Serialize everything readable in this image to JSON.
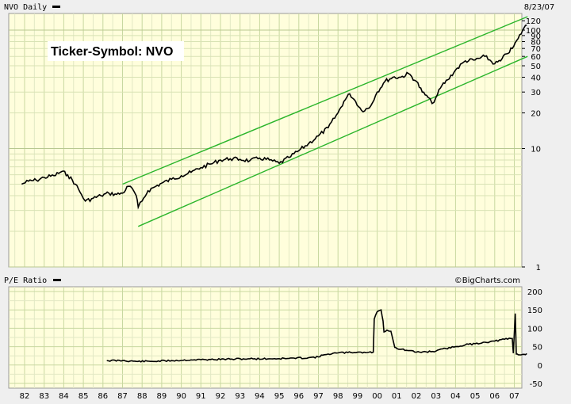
{
  "chart_data": [
    {
      "type": "line",
      "title": "NVO Daily",
      "date_label": "8/23/07",
      "annotation": "Ticker-Symbol: NVO",
      "scale": "log",
      "ylim": [
        1,
        130
      ],
      "y_ticks": [
        1,
        10,
        20,
        30,
        40,
        50,
        60,
        70,
        80,
        90,
        100,
        120
      ],
      "x_ticks": [
        "82",
        "83",
        "84",
        "85",
        "86",
        "87",
        "88",
        "89",
        "90",
        "91",
        "92",
        "93",
        "94",
        "95",
        "96",
        "97",
        "98",
        "99",
        "00",
        "01",
        "02",
        "03",
        "04",
        "05",
        "06",
        "07"
      ],
      "grid": true,
      "series": [
        {
          "x": [
            1981.85,
            1982.2,
            1982.6,
            1983.0,
            1983.5,
            1983.9,
            1984.2,
            1984.6,
            1984.9,
            1985.1,
            1985.5,
            1985.9,
            1986.3,
            1986.7,
            1987.0,
            1987.3,
            1987.5,
            1987.7,
            1987.8,
            1988.0,
            1988.3,
            1988.7,
            1989.0,
            1989.5,
            1990.0,
            1990.5,
            1991.0,
            1991.5,
            1992.0,
            1992.5,
            1993.0,
            1993.5,
            1994.0,
            1994.5,
            1995.0,
            1995.5,
            1996.0,
            1996.5,
            1997.0,
            1997.5,
            1998.0,
            1998.3,
            1998.6,
            1998.9,
            1999.2,
            1999.6,
            2000.0,
            2000.4,
            2000.8,
            2001.2,
            2001.6,
            2002.0,
            2002.3,
            2002.6,
            2002.8,
            2003.0,
            2003.3,
            2003.6,
            2004.0,
            2004.5,
            2005.0,
            2005.5,
            2006.0,
            2006.3,
            2006.6,
            2006.9,
            2007.2,
            2007.5,
            2007.64
          ],
          "values": [
            5.0,
            5.3,
            5.4,
            5.7,
            5.9,
            6.4,
            6.0,
            5.0,
            4.1,
            3.6,
            3.8,
            4.0,
            4.2,
            4.1,
            4.2,
            4.8,
            4.6,
            4.0,
            3.2,
            3.6,
            4.4,
            4.8,
            5.1,
            5.5,
            5.9,
            6.3,
            6.9,
            7.4,
            8.0,
            8.2,
            8.1,
            7.9,
            8.3,
            8.0,
            7.5,
            8.4,
            9.6,
            11.0,
            12.8,
            15.0,
            20.0,
            25.0,
            29.0,
            25.0,
            21.0,
            22.0,
            30.0,
            37.0,
            40.0,
            40.0,
            43.0,
            37.0,
            30.0,
            27.0,
            24.0,
            27.0,
            34.0,
            38.0,
            46.0,
            55.0,
            56.0,
            60.0,
            52.0,
            55.0,
            63.0,
            70.0,
            85.0,
            105.0,
            110.0
          ]
        }
      ],
      "trend_lines": [
        {
          "x": [
            1987.0,
            2007.68
          ],
          "values": [
            5.0,
            130.0
          ]
        },
        {
          "x": [
            1987.8,
            2007.68
          ],
          "values": [
            2.2,
            60.0
          ]
        }
      ]
    },
    {
      "type": "line",
      "title": "P/E Ratio",
      "credit": "©BigCharts.com",
      "ylim": [
        -50,
        200
      ],
      "y_ticks": [
        -50,
        0,
        50,
        100,
        150,
        200
      ],
      "grid": true,
      "series": [
        {
          "x": [
            1986.2,
            1987.0,
            1987.7,
            1988.5,
            1989.5,
            1990.5,
            1991.5,
            1992.5,
            1993.5,
            1994.5,
            1995.5,
            1996.5,
            1997.0,
            1997.3,
            1997.5,
            1998.0,
            1998.5,
            1999.0,
            1999.5,
            1999.8,
            1999.85,
            2000.0,
            2000.2,
            2000.3,
            2000.35,
            2000.5,
            2000.7,
            2000.9,
            2001.0,
            2001.5,
            2002.0,
            2002.5,
            2003.0,
            2003.5,
            2004.0,
            2004.5,
            2005.0,
            2005.5,
            2006.0,
            2006.5,
            2006.9,
            2006.95,
            2007.05,
            2007.1,
            2007.2,
            2007.5,
            2007.64
          ],
          "values": [
            12,
            12,
            10,
            10,
            12,
            14,
            15,
            16,
            17,
            17,
            18,
            20,
            22,
            28,
            30,
            33,
            34,
            35,
            34,
            35,
            125,
            145,
            150,
            120,
            90,
            95,
            92,
            48,
            45,
            40,
            35,
            36,
            38,
            45,
            50,
            55,
            58,
            62,
            65,
            70,
            72,
            32,
            140,
            30,
            28,
            29,
            31
          ]
        }
      ]
    }
  ]
}
